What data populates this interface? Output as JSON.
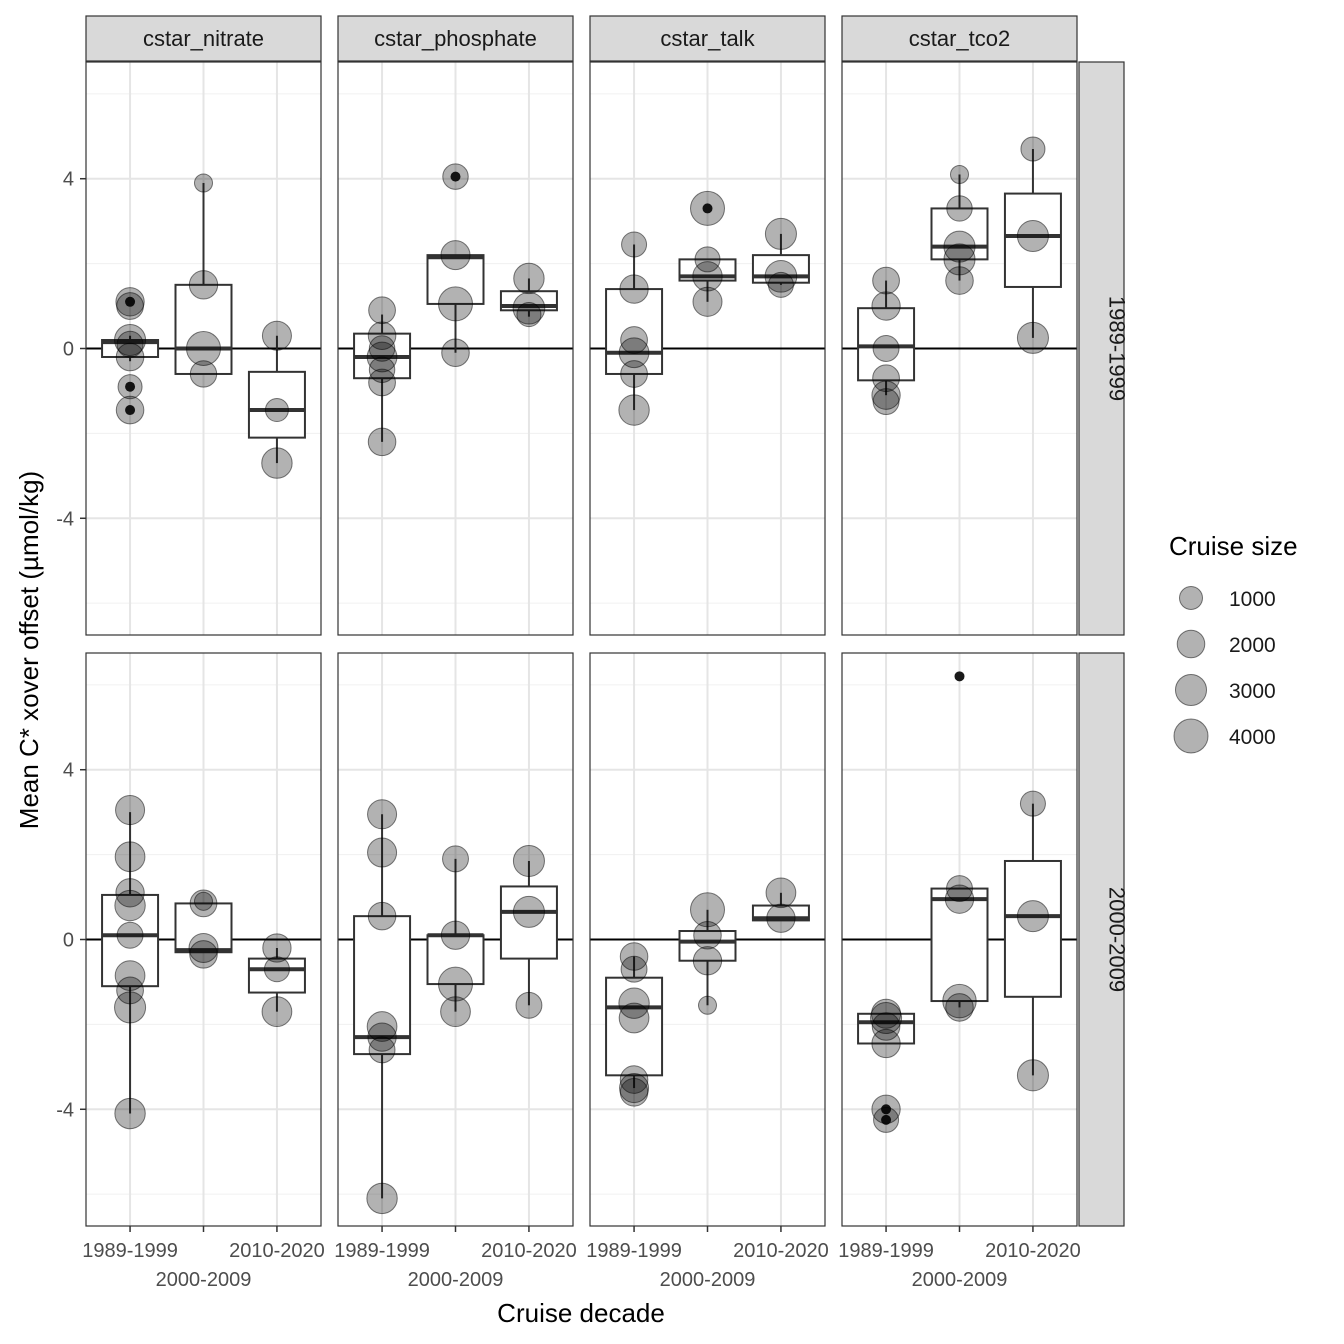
{
  "chart_data": {
    "type": "boxplot-facet",
    "xlabel": "Cruise decade",
    "ylabel": "Mean C* xover offset (µmol/kg)",
    "ylim": [
      -6.75,
      6.75
    ],
    "y_ticks": [
      -4,
      0,
      4
    ],
    "categories": [
      "1989-1999",
      "2000-2009",
      "2010-2020"
    ],
    "x_tick_labels_top": [
      "1989-1999",
      "",
      "2010-2020"
    ],
    "x_tick_labels_bottom": [
      "",
      "2000-2009",
      ""
    ],
    "facet_columns": [
      "cstar_nitrate",
      "cstar_phosphate",
      "cstar_talk",
      "cstar_tco2"
    ],
    "facet_rows": [
      "1989-1999",
      "2000-2009"
    ],
    "legend": {
      "title": "Cruise size",
      "sizes": [
        1000,
        2000,
        3000,
        4000
      ],
      "labels": [
        "1000",
        "2000",
        "3000",
        "4000"
      ]
    },
    "panels": [
      {
        "row": 0,
        "col": 0,
        "boxes": [
          {
            "q1": -0.2,
            "median": 0.15,
            "q3": 0.2,
            "wlo": -0.3,
            "whi": 0.3,
            "outliers": [
              1.1,
              -0.9,
              -1.45
            ]
          },
          {
            "q1": -0.6,
            "median": 0.0,
            "q3": 1.5,
            "wlo": -0.6,
            "whi": 3.9,
            "outliers": []
          },
          {
            "q1": -2.1,
            "median": -1.45,
            "q3": -0.55,
            "wlo": -2.7,
            "whi": 0.3,
            "outliers": []
          }
        ],
        "points": [
          [
            [
              1.1,
              2200
            ],
            [
              1.0,
              1800
            ],
            [
              0.2,
              3000
            ],
            [
              0.1,
              1600
            ],
            [
              -0.2,
              2000
            ],
            [
              -0.9,
              1200
            ],
            [
              -1.45,
              2000
            ]
          ],
          [
            [
              3.9,
              300
            ],
            [
              1.5,
              2200
            ],
            [
              0.0,
              4000
            ],
            [
              -0.6,
              1700
            ]
          ],
          [
            [
              0.3,
              2400
            ],
            [
              -1.45,
              1000
            ],
            [
              -2.7,
              2800
            ]
          ]
        ]
      },
      {
        "row": 0,
        "col": 1,
        "boxes": [
          {
            "q1": -0.7,
            "median": -0.2,
            "q3": 0.35,
            "wlo": -2.2,
            "whi": 0.8,
            "outliers": []
          },
          {
            "q1": 1.05,
            "median": 2.15,
            "q3": 2.2,
            "wlo": -0.1,
            "whi": 2.2,
            "outliers": [
              4.05
            ]
          },
          {
            "q1": 0.9,
            "median": 1.0,
            "q3": 1.35,
            "wlo": 0.75,
            "whi": 1.65,
            "outliers": []
          }
        ],
        "points": [
          [
            [
              0.9,
              1800
            ],
            [
              0.3,
              2000
            ],
            [
              0.0,
              1500
            ],
            [
              -0.2,
              2600
            ],
            [
              -0.5,
              1500
            ],
            [
              -0.8,
              1800
            ],
            [
              -2.2,
              2000
            ]
          ],
          [
            [
              4.05,
              1500
            ],
            [
              2.2,
              2400
            ],
            [
              1.05,
              4000
            ],
            [
              -0.1,
              2000
            ]
          ],
          [
            [
              1.65,
              2800
            ],
            [
              0.95,
              3200
            ],
            [
              0.8,
              1200
            ]
          ]
        ]
      },
      {
        "row": 0,
        "col": 2,
        "boxes": [
          {
            "q1": -0.6,
            "median": -0.1,
            "q3": 1.4,
            "wlo": -1.45,
            "whi": 2.45,
            "outliers": []
          },
          {
            "q1": 1.6,
            "median": 1.7,
            "q3": 2.1,
            "wlo": 1.1,
            "whi": 2.1,
            "outliers": [
              3.3
            ]
          },
          {
            "q1": 1.55,
            "median": 1.7,
            "q3": 2.2,
            "wlo": 1.5,
            "whi": 2.7,
            "outliers": []
          }
        ],
        "points": [
          [
            [
              2.45,
              1400
            ],
            [
              1.4,
              2200
            ],
            [
              0.2,
              1800
            ],
            [
              -0.1,
              2600
            ],
            [
              -0.6,
              1800
            ],
            [
              -1.45,
              2800
            ]
          ],
          [
            [
              3.3,
              4000
            ],
            [
              2.1,
              1400
            ],
            [
              1.7,
              2500
            ],
            [
              1.1,
              2400
            ]
          ],
          [
            [
              2.7,
              3000
            ],
            [
              1.7,
              3200
            ],
            [
              1.5,
              1400
            ]
          ]
        ]
      },
      {
        "row": 0,
        "col": 3,
        "boxes": [
          {
            "q1": -0.75,
            "median": 0.05,
            "q3": 0.95,
            "wlo": -1.1,
            "whi": 1.6,
            "outliers": []
          },
          {
            "q1": 2.1,
            "median": 2.4,
            "q3": 3.3,
            "wlo": 1.6,
            "whi": 4.1,
            "outliers": []
          },
          {
            "q1": 1.45,
            "median": 2.65,
            "q3": 3.65,
            "wlo": 0.25,
            "whi": 4.7,
            "outliers": []
          }
        ],
        "points": [
          [
            [
              1.6,
              1800
            ],
            [
              1.0,
              2200
            ],
            [
              0.0,
              1600
            ],
            [
              -0.7,
              1800
            ],
            [
              -1.1,
              2200
            ],
            [
              -1.25,
              1600
            ]
          ],
          [
            [
              4.1,
              300
            ],
            [
              3.3,
              1500
            ],
            [
              2.4,
              3000
            ],
            [
              2.1,
              3000
            ],
            [
              1.6,
              2000
            ]
          ],
          [
            [
              4.7,
              1200
            ],
            [
              2.65,
              3000
            ],
            [
              0.25,
              3000
            ]
          ]
        ]
      },
      {
        "row": 1,
        "col": 0,
        "boxes": [
          {
            "q1": -1.1,
            "median": 0.1,
            "q3": 1.05,
            "wlo": -4.1,
            "whi": 3.0,
            "outliers": []
          },
          {
            "q1": -0.3,
            "median": -0.25,
            "q3": 0.85,
            "wlo": -0.3,
            "whi": 0.85,
            "outliers": []
          },
          {
            "q1": -1.25,
            "median": -0.7,
            "q3": -0.45,
            "wlo": -1.7,
            "whi": -0.2,
            "outliers": []
          }
        ],
        "points": [
          [
            [
              3.05,
              2400
            ],
            [
              1.95,
              2600
            ],
            [
              1.1,
              2200
            ],
            [
              0.8,
              2800
            ],
            [
              0.1,
              1600
            ],
            [
              -0.85,
              2600
            ],
            [
              -1.2,
              1800
            ],
            [
              -1.6,
              3000
            ],
            [
              -4.1,
              2800
            ]
          ],
          [
            [
              0.85,
              1800
            ],
            [
              0.9,
              300
            ],
            [
              -0.2,
              2400
            ],
            [
              -0.35,
              2000
            ]
          ],
          [
            [
              -0.2,
              2200
            ],
            [
              -0.7,
              1400
            ],
            [
              -1.7,
              2600
            ]
          ]
        ]
      },
      {
        "row": 1,
        "col": 1,
        "boxes": [
          {
            "q1": -2.7,
            "median": -2.3,
            "q3": 0.55,
            "wlo": -6.1,
            "whi": 2.95,
            "outliers": []
          },
          {
            "q1": -1.05,
            "median": 0.1,
            "q3": 0.1,
            "wlo": -1.7,
            "whi": 1.9,
            "outliers": []
          },
          {
            "q1": -0.45,
            "median": 0.65,
            "q3": 1.25,
            "wlo": -1.55,
            "whi": 1.85,
            "outliers": []
          }
        ],
        "points": [
          [
            [
              2.95,
              2400
            ],
            [
              2.05,
              2400
            ],
            [
              0.55,
              2000
            ],
            [
              -2.05,
              2600
            ],
            [
              -2.3,
              2200
            ],
            [
              -2.6,
              1600
            ],
            [
              -6.1,
              2800
            ]
          ],
          [
            [
              1.9,
              1600
            ],
            [
              0.1,
              2200
            ],
            [
              -1.05,
              4000
            ],
            [
              -1.7,
              2600
            ]
          ],
          [
            [
              1.85,
              3000
            ],
            [
              0.65,
              3000
            ],
            [
              -1.55,
              1600
            ]
          ]
        ]
      },
      {
        "row": 1,
        "col": 2,
        "boxes": [
          {
            "q1": -3.2,
            "median": -1.6,
            "q3": -0.9,
            "wlo": -3.5,
            "whi": -0.4,
            "outliers": []
          },
          {
            "q1": -0.5,
            "median": -0.05,
            "q3": 0.2,
            "wlo": -1.55,
            "whi": 0.7,
            "outliers": []
          },
          {
            "q1": 0.45,
            "median": 0.5,
            "q3": 0.8,
            "wlo": 0.45,
            "whi": 1.1,
            "outliers": []
          }
        ],
        "points": [
          [
            [
              -0.4,
              2000
            ],
            [
              -0.7,
              1600
            ],
            [
              -1.5,
              2800
            ],
            [
              -1.85,
              2600
            ],
            [
              -3.3,
              2000
            ],
            [
              -3.5,
              2400
            ],
            [
              -3.6,
              2000
            ]
          ],
          [
            [
              0.7,
              4000
            ],
            [
              0.1,
              2000
            ],
            [
              -0.5,
              2200
            ],
            [
              -1.55,
              300
            ]
          ],
          [
            [
              1.1,
              2600
            ],
            [
              0.5,
              2200
            ]
          ]
        ]
      },
      {
        "row": 1,
        "col": 3,
        "boxes": [
          {
            "q1": -2.45,
            "median": -1.95,
            "q3": -1.75,
            "wlo": -2.45,
            "whi": -1.75,
            "outliers": [
              -4.0,
              -4.25
            ]
          },
          {
            "q1": -1.45,
            "median": 0.95,
            "q3": 1.2,
            "wlo": -1.6,
            "whi": 1.2,
            "outliers": [
              6.2
            ]
          },
          {
            "q1": -1.35,
            "median": 0.55,
            "q3": 1.85,
            "wlo": -3.2,
            "whi": 3.2,
            "outliers": []
          }
        ],
        "points": [
          [
            [
              -1.75,
              2400
            ],
            [
              -1.85,
              3000
            ],
            [
              -2.05,
              2000
            ],
            [
              -2.45,
              2200
            ],
            [
              -4.0,
              2200
            ],
            [
              -4.25,
              1400
            ]
          ],
          [
            [
              1.2,
              1600
            ],
            [
              0.95,
              2200
            ],
            [
              -1.45,
              3800
            ],
            [
              -1.6,
              2000
            ]
          ],
          [
            [
              3.2,
              1400
            ],
            [
              0.55,
              3000
            ],
            [
              -3.2,
              3000
            ]
          ]
        ]
      }
    ]
  }
}
